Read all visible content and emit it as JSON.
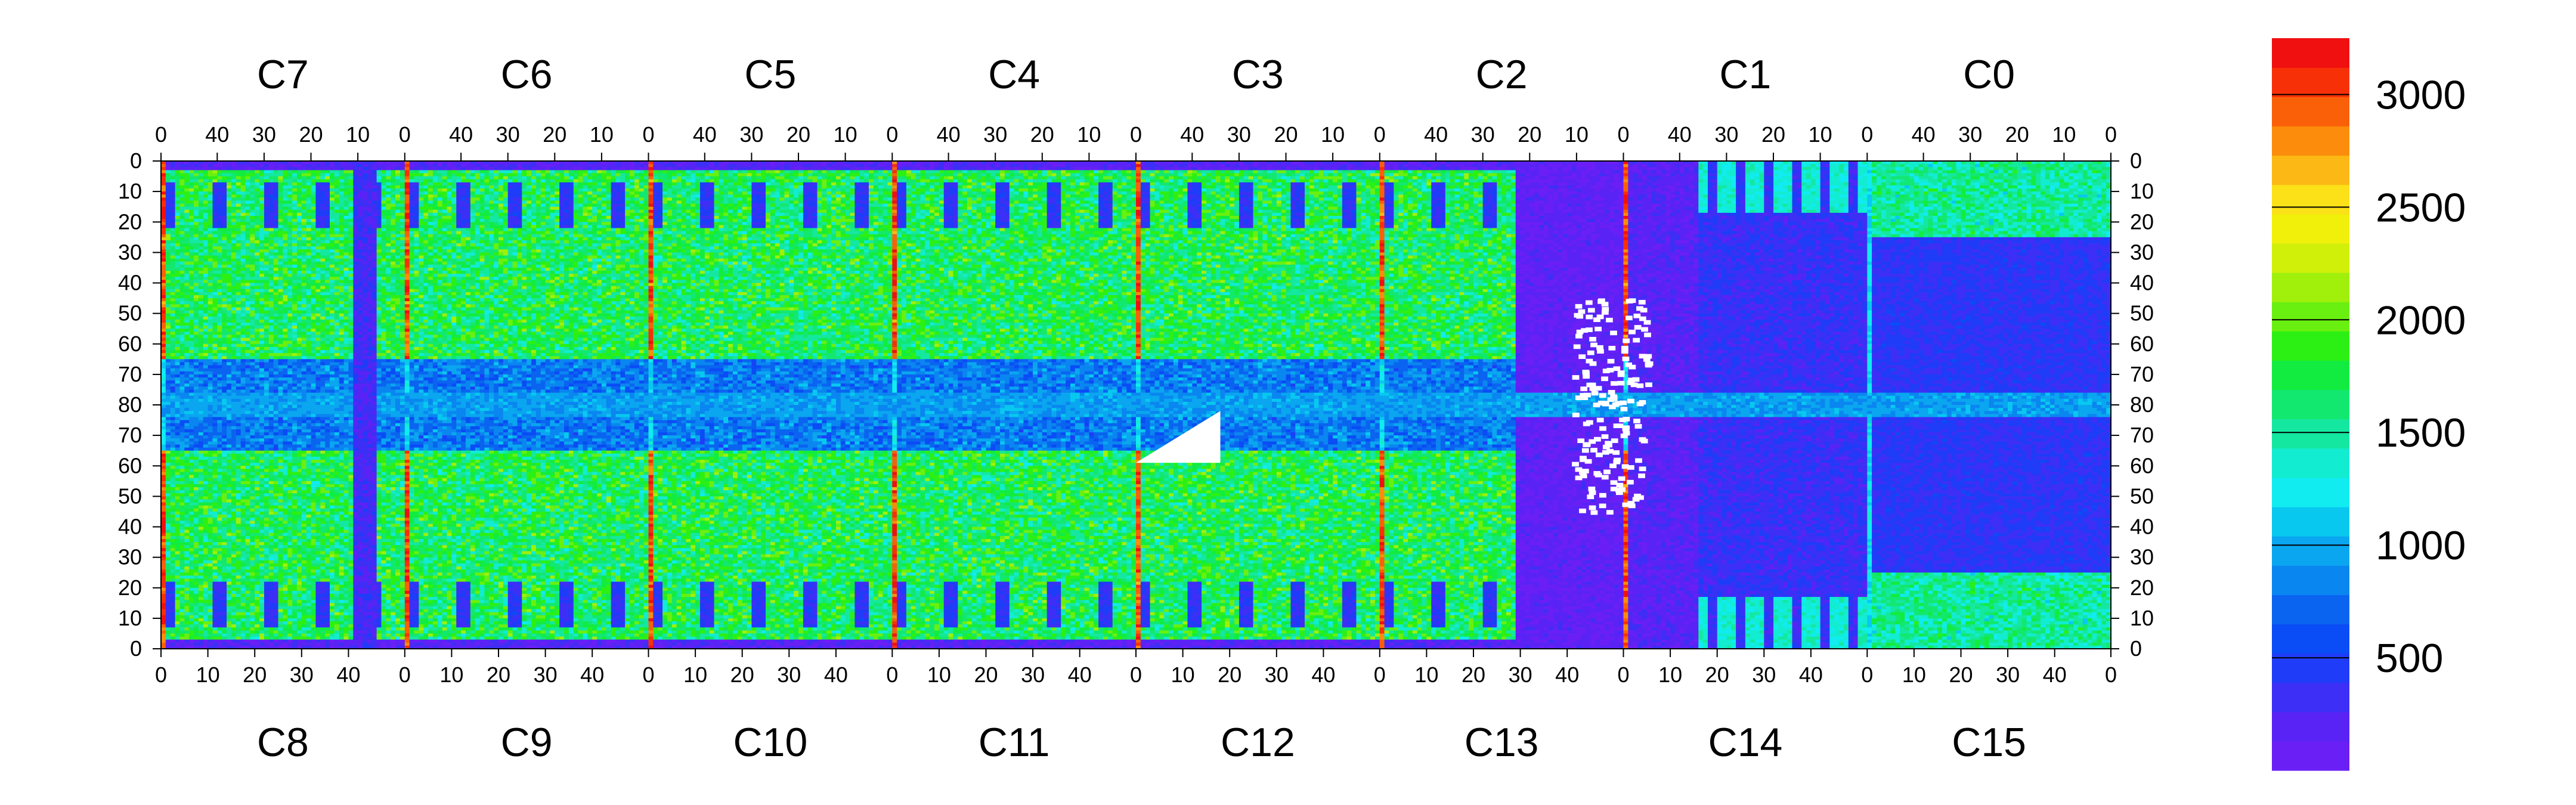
{
  "chart_data": {
    "type": "heatmap",
    "title": "",
    "top_chip_labels": [
      "C7",
      "C6",
      "C5",
      "C4",
      "C3",
      "C2",
      "C1",
      "C0"
    ],
    "bottom_chip_labels": [
      "C8",
      "C9",
      "C10",
      "C11",
      "C12",
      "C13",
      "C14",
      "C15"
    ],
    "top_tick_labels": [
      "40",
      "30",
      "20",
      "10",
      "0"
    ],
    "bottom_tick_labels": [
      "0",
      "10",
      "20",
      "30",
      "40"
    ],
    "first_top_tick_label": "0",
    "last_bottom_tick_label": "0",
    "left_tick_labels": [
      "0",
      "10",
      "20",
      "30",
      "40",
      "50",
      "60",
      "70",
      "80",
      "70",
      "60",
      "50",
      "40",
      "30",
      "20",
      "10",
      "0"
    ],
    "right_tick_labels": [
      "0",
      "10",
      "20",
      "30",
      "40",
      "50",
      "60",
      "70",
      "80",
      "70",
      "60",
      "50",
      "40",
      "30",
      "20",
      "10",
      "0"
    ],
    "z_range": [
      0,
      3250
    ],
    "colorbar_ticks": [
      {
        "value": 500,
        "label": "500"
      },
      {
        "value": 1000,
        "label": "1000"
      },
      {
        "value": 1500,
        "label": "1500"
      },
      {
        "value": 2000,
        "label": "2000"
      },
      {
        "value": 2500,
        "label": "2500"
      },
      {
        "value": 3000,
        "label": "3000"
      }
    ],
    "palette": [
      "#6a1ff5",
      "#5a23f5",
      "#3d2ff5",
      "#1f3cf8",
      "#0a4cf5",
      "#0a64f0",
      "#0a86f0",
      "#0aa6f0",
      "#08c8f0",
      "#10ecf0",
      "#12ecd0",
      "#14e8a0",
      "#12e870",
      "#12ec40",
      "#2cf014",
      "#6af010",
      "#a0f00c",
      "#d0f00a",
      "#f0f00a",
      "#fce018",
      "#fcb814",
      "#fc8c0c",
      "#fa6008",
      "#f83008",
      "#f01010"
    ],
    "grid": {
      "chips_per_row": 8,
      "columns_per_chip": 52,
      "rows_per_half": 80
    }
  }
}
